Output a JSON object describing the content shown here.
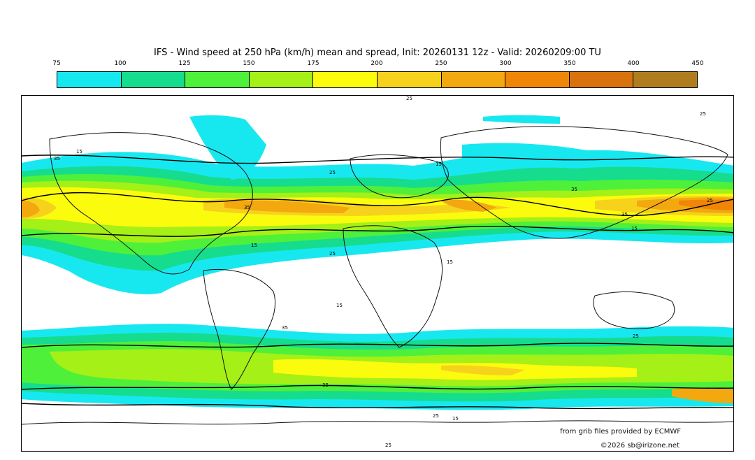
{
  "title": "IFS - Wind speed at 250 hPa (km/h) mean and spread, Init: 20260131 12z - Valid: 20260209:00 TU",
  "legend": {
    "ticks": [
      "75",
      "100",
      "125",
      "150",
      "175",
      "200",
      "250",
      "300",
      "350",
      "400",
      "450"
    ],
    "colors": [
      "#17e8f0",
      "#16dc8e",
      "#4ef03a",
      "#a4f017",
      "#fbfb0e",
      "#f6d21c",
      "#f3a810",
      "#f08608",
      "#d8720c",
      "#b07d1e",
      "#9a6208"
    ]
  },
  "contour_labels": [
    "25",
    "15",
    "35",
    "25",
    "15",
    "35",
    "35",
    "15",
    "25",
    "15",
    "35",
    "25",
    "15",
    "25",
    "35",
    "25",
    "15",
    "25",
    "15",
    "25",
    "35"
  ],
  "footer": {
    "credit": "from grib files provided by ECMWF",
    "copyright": "©2026 sb@irizone.net"
  }
}
